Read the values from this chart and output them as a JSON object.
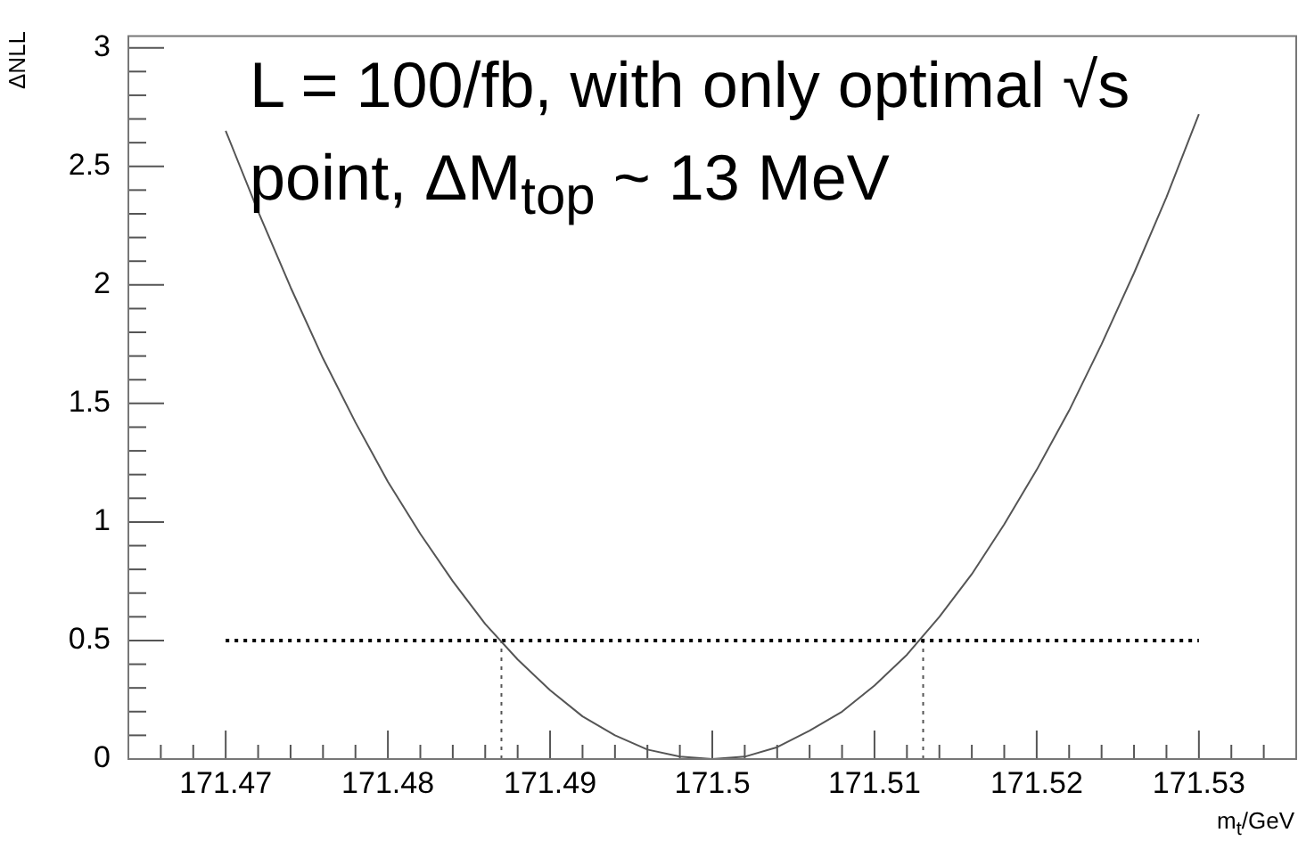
{
  "chart_data": {
    "type": "line",
    "xlabel": "m$_{t}$/GeV",
    "ylabel": "ΔNLL",
    "annotations": [
      "L = 100/fb, with only optimal √s point, ΔM$_{top}$ ~ 13 MeV"
    ],
    "xlim": [
      171.464,
      171.536
    ],
    "ylim": [
      0,
      3.05
    ],
    "xticks": [
      {
        "value": 171.466,
        "label": null
      },
      {
        "value": 171.468,
        "label": null
      },
      171.47,
      {
        "value": 171.472,
        "label": null
      },
      {
        "value": 171.474,
        "label": null
      },
      {
        "value": 171.476,
        "label": null
      },
      {
        "value": 171.478,
        "label": null
      },
      171.48,
      {
        "value": 171.482,
        "label": null
      },
      {
        "value": 171.484,
        "label": null
      },
      {
        "value": 171.486,
        "label": null
      },
      {
        "value": 171.488,
        "label": null
      },
      171.49,
      {
        "value": 171.492,
        "label": null
      },
      {
        "value": 171.494,
        "label": null
      },
      {
        "value": 171.496,
        "label": null
      },
      {
        "value": 171.498,
        "label": null
      },
      171.5,
      {
        "value": 171.502,
        "label": null
      },
      {
        "value": 171.504,
        "label": null
      },
      {
        "value": 171.506,
        "label": null
      },
      {
        "value": 171.508,
        "label": null
      },
      171.51,
      {
        "value": 171.512,
        "label": null
      },
      {
        "value": 171.514,
        "label": null
      },
      {
        "value": 171.516,
        "label": null
      },
      {
        "value": 171.518,
        "label": null
      },
      171.52,
      {
        "value": 171.522,
        "label": null
      },
      {
        "value": 171.524,
        "label": null
      },
      {
        "value": 171.526,
        "label": null
      },
      {
        "value": 171.528,
        "label": null
      },
      171.53,
      {
        "value": 171.532,
        "label": null
      },
      {
        "value": 171.534,
        "label": null
      }
    ],
    "yticks": [
      0,
      {
        "value": 0.1,
        "label": null
      },
      {
        "value": 0.2,
        "label": null
      },
      {
        "value": 0.3,
        "label": null
      },
      {
        "value": 0.4,
        "label": null
      },
      0.5,
      {
        "value": 0.6,
        "label": null
      },
      {
        "value": 0.7,
        "label": null
      },
      {
        "value": 0.8,
        "label": null
      },
      {
        "value": 0.9,
        "label": null
      },
      1,
      {
        "value": 1.1,
        "label": null
      },
      {
        "value": 1.2,
        "label": null
      },
      {
        "value": 1.3,
        "label": null
      },
      {
        "value": 1.4,
        "label": null
      },
      1.5,
      {
        "value": 1.6,
        "label": null
      },
      {
        "value": 1.7,
        "label": null
      },
      {
        "value": 1.8,
        "label": null
      },
      {
        "value": 1.9,
        "label": null
      },
      2,
      {
        "value": 2.1,
        "label": null
      },
      {
        "value": 2.2,
        "label": null
      },
      {
        "value": 2.3,
        "label": null
      },
      {
        "value": 2.4,
        "label": null
      },
      2.5,
      {
        "value": 2.6,
        "label": null
      },
      {
        "value": 2.7,
        "label": null
      },
      {
        "value": 2.8,
        "label": null
      },
      {
        "value": 2.9,
        "label": null
      },
      3
    ],
    "grid": false,
    "legend": false,
    "marker": "none",
    "series": [
      {
        "color": "#555555",
        "line_style": "solid",
        "x": [
          171.47,
          171.472,
          171.474,
          171.476,
          171.478,
          171.48,
          171.482,
          171.484,
          171.486,
          171.488,
          171.49,
          171.492,
          171.494,
          171.496,
          171.498,
          171.5,
          171.502,
          171.504,
          171.506,
          171.508,
          171.51,
          171.512,
          171.514,
          171.516,
          171.518,
          171.52,
          171.522,
          171.524,
          171.526,
          171.528,
          171.53
        ],
        "values": [
          2.65,
          2.31,
          1.99,
          1.69,
          1.42,
          1.17,
          0.95,
          0.75,
          0.57,
          0.42,
          0.29,
          0.18,
          0.1,
          0.04,
          0.01,
          0,
          0.01,
          0.05,
          0.12,
          0.2,
          0.31,
          0.44,
          0.6,
          0.78,
          0.99,
          1.22,
          1.47,
          1.75,
          2.05,
          2.37,
          2.72
        ]
      },
      {
        "color": "#000000",
        "line_style": "dotted",
        "x": [
          171.47,
          171.53
        ],
        "values": [
          0.5,
          0.5
        ]
      },
      {
        "color": "#555555",
        "line_style": "dotted",
        "x": [
          171.487,
          171.487
        ],
        "values": [
          0,
          0.5
        ]
      },
      {
        "color": "#555555",
        "line_style": "dotted",
        "x": [
          171.513,
          171.513
        ],
        "values": [
          0,
          0.5
        ]
      }
    ]
  }
}
